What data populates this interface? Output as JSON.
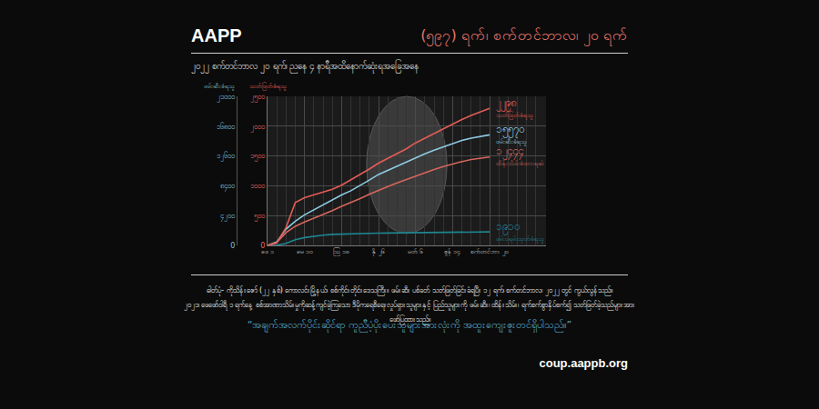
{
  "header": {
    "logo": "AAPP",
    "days": "(၅၉၇) ရက်၊ စက်တင်ဘာလ၊ ၂၀ ရက်",
    "subtitle": "၂၀၂၂ စက်တင်ဘာလ ၂၀ ရက်၊ ညနေ ၄ နာရီအထိနောက်ဆုံးရအခြေအနေ"
  },
  "chart_data": {
    "type": "line",
    "ylabel": "ဖမ်းဆီးခံရသူ",
    "y2label": "သတ်ဖြတ်ခံရသူ",
    "categories": [
      "ဖေ ၁",
      null,
      null,
      null,
      "မေ ၁၀",
      null,
      null,
      null,
      "ဩ ၁၈",
      null,
      null,
      null,
      "နို ၂၆",
      null,
      null,
      null,
      "မတ် ၆",
      null,
      null,
      null,
      "ဇွန် ၁၄",
      null,
      null,
      null,
      "စက်တင်ဘာ ၂၀"
    ],
    "series": [
      {
        "name": "သတ်ဖြတ်ခံရသူ",
        "color": "#e35d57",
        "axis": "y2",
        "values": [
          0,
          40,
          300,
          720,
          800,
          850,
          900,
          940,
          1010,
          1100,
          1180,
          1280,
          1380,
          1460,
          1530,
          1620,
          1720,
          1800,
          1870,
          1950,
          2040,
          2110,
          2180,
          2240,
          2298
        ],
        "value_labels": [
          null,
          null,
          null,
          null,
          null,
          null,
          null,
          null,
          null,
          null,
          null,
          null,
          null,
          null,
          null,
          null,
          null,
          null,
          null,
          null,
          null,
          null,
          null,
          null,
          "၂၂၉၈"
        ]
      },
      {
        "name": "ဖမ်းဆီးခံရသူ",
        "color": "#8ecbe3",
        "values": [
          0,
          500,
          2300,
          3400,
          4300,
          5000,
          5800,
          6400,
          7100,
          7700,
          8400,
          9200,
          10000,
          10600,
          11200,
          11800,
          12400,
          12900,
          13400,
          13900,
          14400,
          14800,
          15100,
          15350,
          15570
        ],
        "value_labels": [
          null,
          null,
          null,
          null,
          null,
          null,
          null,
          null,
          null,
          null,
          null,
          null,
          null,
          null,
          null,
          null,
          null,
          null,
          null,
          null,
          null,
          null,
          null,
          null,
          "၁၅၅၇၀"
        ]
      },
      {
        "name": "ထိန်းသိမ်းခံထားရဆဲ",
        "color": "#d5665d",
        "values": [
          0,
          400,
          1800,
          2700,
          3300,
          3800,
          4400,
          4900,
          5500,
          6000,
          6600,
          7200,
          7800,
          8300,
          8800,
          9300,
          9800,
          10300,
          10700,
          11100,
          11500,
          11800,
          12100,
          12300,
          12444
        ],
        "value_labels": [
          null,
          null,
          null,
          null,
          null,
          null,
          null,
          null,
          null,
          null,
          null,
          null,
          null,
          null,
          null,
          null,
          null,
          null,
          null,
          null,
          null,
          null,
          null,
          null,
          "၁၂၄၄၄"
        ]
      },
      {
        "name": "ဖမ်းဝရမ်းထုတ်ခံရသူ",
        "color": "#1f8590",
        "values": [
          0,
          20,
          300,
          800,
          1100,
          1300,
          1450,
          1550,
          1600,
          1650,
          1680,
          1700,
          1720,
          1740,
          1760,
          1780,
          1800,
          1820,
          1840,
          1860,
          1880,
          1890,
          1900,
          1905,
          1910
        ],
        "value_labels": [
          null,
          null,
          null,
          null,
          null,
          null,
          null,
          null,
          null,
          null,
          null,
          null,
          null,
          null,
          null,
          null,
          null,
          null,
          null,
          null,
          null,
          null,
          null,
          null,
          "၁၉၁၀"
        ]
      }
    ],
    "ylim": [
      0,
      21000
    ],
    "yticks": [
      0,
      {
        "value": 4200,
        "label": "၄၂၀၀"
      },
      {
        "value": 8400,
        "label": "၈၄၀၀"
      },
      {
        "value": 12600,
        "label": "၁၂၆၀၀"
      },
      {
        "value": 16800,
        "label": "၁၆၈၀၀"
      },
      {
        "value": 21000,
        "label": "၂၁၀၀၀"
      }
    ],
    "y2lim": [
      0,
      2500
    ],
    "y2ticks": [
      0,
      {
        "value": 500,
        "label": "၅၀၀"
      },
      {
        "value": 1000,
        "label": "၁၀၀၀"
      },
      {
        "value": 1500,
        "label": "၁၅၀၀"
      },
      {
        "value": 2000,
        "label": "၂၀၀၀"
      },
      {
        "value": 2500,
        "label": "၂၅၀၀"
      }
    ],
    "grid": true
  },
  "footer": {
    "caption": [
      "ဓါတ်ပုံ- ကိုသိန်းဇော် (၂၂ နှစ်) ကောလင်းမြို့နယ်၊ စစ်ကိုင်းတိုင်းဒေသကြီး။ ဖမ်းဆီး ပစ်ခတ် သတ်ဖြတ်ခြင်းခံရပြီး ၁၂ ရက်၊ စက်တင်ဘာလ၊ ၂၀၂၂ တွင် ကွယ်လွန်သည်။",
      "၂၀၂၁၊ ဖေဖော်ဝါရီ ၁ ရက်နေ့ စစ်အာဏာသိမ်းမှုကိုဆန့်ကျင်ခဲ့ကြသော ဒီမိုကရေစီရေးလှုပ်ရှားသူများနှင့် ပြည်သူများကို ဖမ်းဆီး၊ ထိန်းသိမ်း၊ ရက်စက်စွာနှိပ်စက်၍ သတ်ဖြတ်ခဲ့သည်များအား ဖော်ပြထားသည်။"
    ],
    "quote": "“အချက်အလက်ပိုင်းဆိုင်ရာ ကူညီပံ့ပိုးပေးသူများအားလုံးကို အထူးကျေးဇူးတင်ရှိပါသည်။”",
    "url": "coup.aappb.org"
  }
}
